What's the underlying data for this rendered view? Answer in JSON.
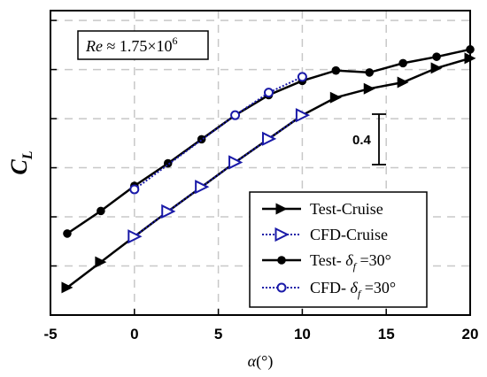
{
  "chart_data": {
    "type": "line",
    "x": [
      -4,
      -2,
      0,
      2,
      4,
      6,
      8,
      10,
      12,
      14,
      16,
      18,
      20
    ],
    "xlim": [
      -5,
      20
    ],
    "ylim": [
      0,
      6.2
    ],
    "xticks": [
      "-5",
      "0",
      "5",
      "10",
      "15",
      "20"
    ],
    "xlabel_symbol": "α",
    "xlabel_unit": "(°)",
    "ylabel_main": "C",
    "ylabel_sub": "L",
    "annotation": {
      "re_prefix": "Re",
      "re_value": " ≈ 1.75×10",
      "re_exp": "6",
      "scale_label": "0.4"
    },
    "grid": true,
    "legend_position": "bottom-right",
    "series": [
      {
        "name": "Test-Cruise",
        "style": "solid",
        "marker": "triangle-right",
        "color": "#000000",
        "x": [
          -4,
          -2,
          0,
          2,
          4,
          6,
          8,
          10,
          12,
          14,
          16,
          18,
          20
        ],
        "values": [
          0.56,
          1.08,
          1.6,
          2.11,
          2.61,
          3.11,
          3.59,
          4.07,
          4.43,
          4.61,
          4.74,
          5.03,
          5.23
        ]
      },
      {
        "name": "CFD-Cruise",
        "style": "dotted",
        "marker": "triangle-right-open",
        "color": "#1a1aa8",
        "x": [
          0,
          2,
          4,
          6,
          8,
          10
        ],
        "values": [
          1.6,
          2.11,
          2.61,
          3.11,
          3.59,
          4.07
        ]
      },
      {
        "name": "Test- δf =30°",
        "name_main": "Test- ",
        "name_delta": "δ",
        "name_sub": "f",
        "name_tail": " =30°",
        "style": "solid",
        "marker": "circle",
        "color": "#000000",
        "x": [
          -4,
          -2,
          0,
          2,
          4,
          6,
          8,
          10,
          12,
          14,
          16,
          18,
          20
        ],
        "values": [
          1.66,
          2.12,
          2.63,
          3.09,
          3.58,
          4.07,
          4.48,
          4.77,
          4.98,
          4.94,
          5.13,
          5.26,
          5.41
        ]
      },
      {
        "name": "CFD- δf =30°",
        "name_main": "CFD- ",
        "name_delta": "δ",
        "name_sub": "f",
        "name_tail": " =30°",
        "style": "dotted",
        "marker": "circle-open",
        "color": "#1a1aa8",
        "x": [
          0,
          6,
          8,
          10
        ],
        "values": [
          2.56,
          4.07,
          4.53,
          4.85
        ]
      }
    ]
  }
}
